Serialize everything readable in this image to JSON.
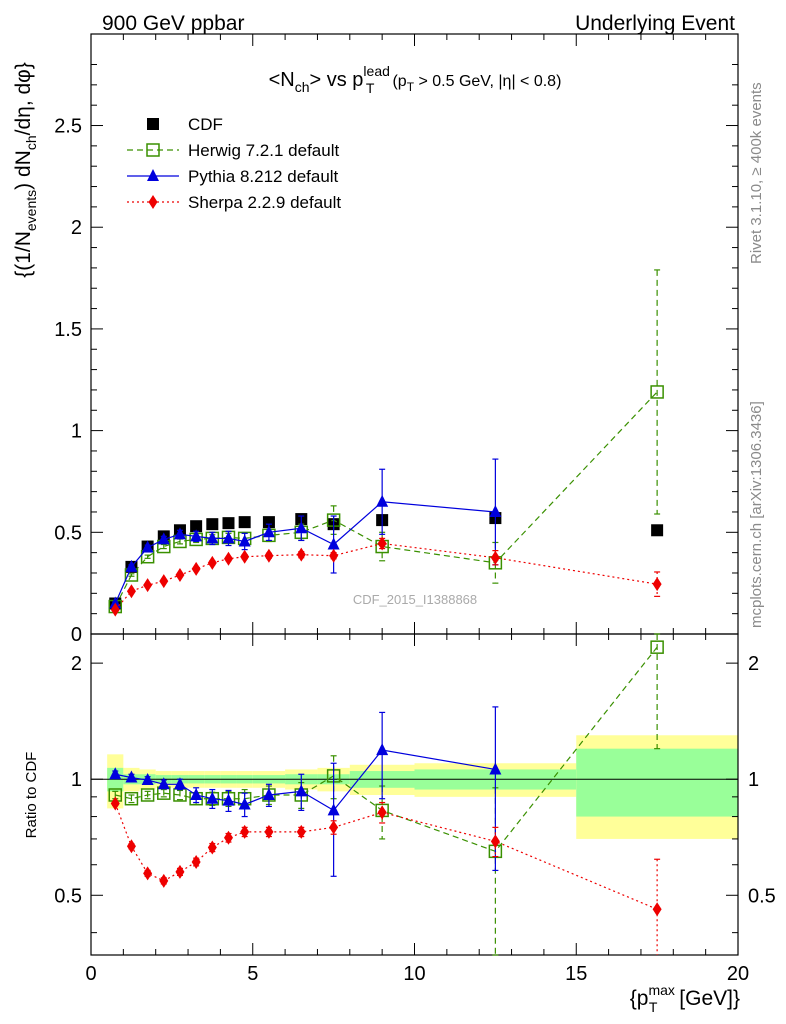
{
  "header": {
    "left": "900 GeV ppbar",
    "right": "Underlying Event"
  },
  "side": {
    "rivet": "Rivet 3.1.10, ≥ 400k events",
    "mcplots": "mcplots.cern.ch [arXiv:1306.3436]"
  },
  "chart_data": {
    "type": "scatter",
    "title": "<N_ch> vs p_T^lead (p_T > 0.5 GeV, |η| < 0.8)",
    "ylabel": "{(1/N_events) dN_ch/dη, dφ}",
    "xlabel": "{p_T^max [GeV]}",
    "ratio_ylabel": "Ratio to CDF",
    "watermark": "CDF_2015_I1388868",
    "xlim": [
      0,
      20
    ],
    "ylim": [
      0,
      2.95
    ],
    "ratio_ylim": [
      0.35,
      2.38
    ],
    "ratio_scale": "log",
    "xticks": [
      "0",
      "5",
      "10",
      "15",
      "20"
    ],
    "yticks": [
      "0",
      "0.5",
      "1",
      "1.5",
      "2",
      "2.5"
    ],
    "ratio_yticks": [
      "0.5",
      "1",
      "2"
    ],
    "legend_position": "top-left",
    "colors": {
      "cdf": "#000000",
      "herwig": "#3a9000",
      "pythia": "#0000dd",
      "sherpa": "#ee0000",
      "band_outer": "#ffff99",
      "band_inner": "#99ff99"
    },
    "series": [
      {
        "name": "CDF",
        "style": "data",
        "marker": "square-filled",
        "x": [
          0.75,
          1.25,
          1.75,
          2.25,
          2.75,
          3.25,
          3.75,
          4.25,
          4.75,
          5.5,
          6.5,
          7.5,
          9.0,
          12.5,
          17.5
        ],
        "y": [
          0.15,
          0.33,
          0.43,
          0.48,
          0.51,
          0.53,
          0.54,
          0.545,
          0.55,
          0.55,
          0.565,
          0.54,
          0.56,
          0.57,
          0.51
        ],
        "xerr": [
          0.25,
          0.25,
          0.25,
          0.25,
          0.25,
          0.25,
          0.25,
          0.25,
          0.25,
          0.5,
          0.5,
          0.5,
          1.0,
          2.5,
          2.5
        ],
        "ratio_band_inner": [
          0.07,
          0.03,
          0.03,
          0.025,
          0.025,
          0.025,
          0.025,
          0.025,
          0.025,
          0.025,
          0.03,
          0.03,
          0.05,
          0.06,
          0.2
        ],
        "ratio_band_outer": [
          0.16,
          0.07,
          0.06,
          0.05,
          0.05,
          0.05,
          0.05,
          0.05,
          0.05,
          0.05,
          0.06,
          0.07,
          0.09,
          0.1,
          0.3
        ]
      },
      {
        "name": "Herwig 7.2.1 default",
        "style": "dashed",
        "marker": "square-open",
        "x": [
          0.75,
          1.25,
          1.75,
          2.25,
          2.75,
          3.25,
          3.75,
          4.25,
          4.75,
          5.5,
          6.5,
          7.5,
          9.0,
          12.5,
          17.5
        ],
        "y": [
          0.135,
          0.29,
          0.38,
          0.43,
          0.455,
          0.465,
          0.47,
          0.475,
          0.47,
          0.485,
          0.5,
          0.56,
          0.43,
          0.35,
          1.19
        ],
        "yerr": [
          0.005,
          0.006,
          0.008,
          0.01,
          0.012,
          0.015,
          0.018,
          0.02,
          0.025,
          0.03,
          0.04,
          0.07,
          0.07,
          0.1,
          0.6
        ],
        "ratio": [
          0.91,
          0.89,
          0.91,
          0.92,
          0.91,
          0.89,
          0.89,
          0.89,
          0.89,
          0.91,
          0.91,
          1.02,
          0.83,
          0.65,
          2.2
        ],
        "ratio_err": [
          0.02,
          0.02,
          0.02,
          0.02,
          0.025,
          0.03,
          0.035,
          0.04,
          0.05,
          0.05,
          0.07,
          0.13,
          0.13,
          0.3,
          1.0
        ]
      },
      {
        "name": "Pythia 8.212 default",
        "style": "solid",
        "marker": "triangle-filled",
        "x": [
          0.75,
          1.25,
          1.75,
          2.25,
          2.75,
          3.25,
          3.75,
          4.25,
          4.75,
          5.5,
          6.5,
          7.5,
          9.0,
          12.5,
          17.5
        ],
        "y": [
          0.15,
          0.33,
          0.425,
          0.465,
          0.49,
          0.48,
          0.47,
          0.47,
          0.455,
          0.5,
          0.52,
          0.44,
          0.65,
          0.6,
          null
        ],
        "yerr": [
          0.008,
          0.01,
          0.012,
          0.015,
          0.02,
          0.025,
          0.03,
          0.035,
          0.04,
          0.04,
          0.06,
          0.14,
          0.16,
          0.26,
          null
        ],
        "ratio": [
          1.03,
          1.01,
          0.995,
          0.97,
          0.97,
          0.91,
          0.89,
          0.88,
          0.86,
          0.91,
          0.93,
          0.83,
          1.19,
          1.06,
          null
        ],
        "ratio_err": [
          0.02,
          0.02,
          0.02,
          0.025,
          0.03,
          0.04,
          0.05,
          0.055,
          0.06,
          0.06,
          0.1,
          0.27,
          0.3,
          0.48,
          null
        ]
      },
      {
        "name": "Sherpa 2.2.9 default",
        "style": "dotted",
        "marker": "diamond-filled",
        "x": [
          0.75,
          1.25,
          1.75,
          2.25,
          2.75,
          3.25,
          3.75,
          4.25,
          4.75,
          5.5,
          6.5,
          7.5,
          9.0,
          12.5,
          17.5
        ],
        "y": [
          0.12,
          0.21,
          0.24,
          0.26,
          0.29,
          0.32,
          0.35,
          0.37,
          0.38,
          0.385,
          0.39,
          0.385,
          0.445,
          0.375,
          0.245
        ],
        "yerr": [
          0.004,
          0.005,
          0.006,
          0.007,
          0.008,
          0.009,
          0.01,
          0.01,
          0.01,
          0.012,
          0.015,
          0.015,
          0.025,
          0.035,
          0.06
        ],
        "ratio": [
          0.865,
          0.67,
          0.57,
          0.545,
          0.575,
          0.61,
          0.665,
          0.705,
          0.73,
          0.73,
          0.73,
          0.75,
          0.82,
          0.69,
          0.46
        ],
        "ratio_err": [
          0.01,
          0.01,
          0.01,
          0.01,
          0.012,
          0.014,
          0.016,
          0.018,
          0.02,
          0.02,
          0.02,
          0.03,
          0.05,
          0.06,
          0.16
        ]
      }
    ]
  }
}
